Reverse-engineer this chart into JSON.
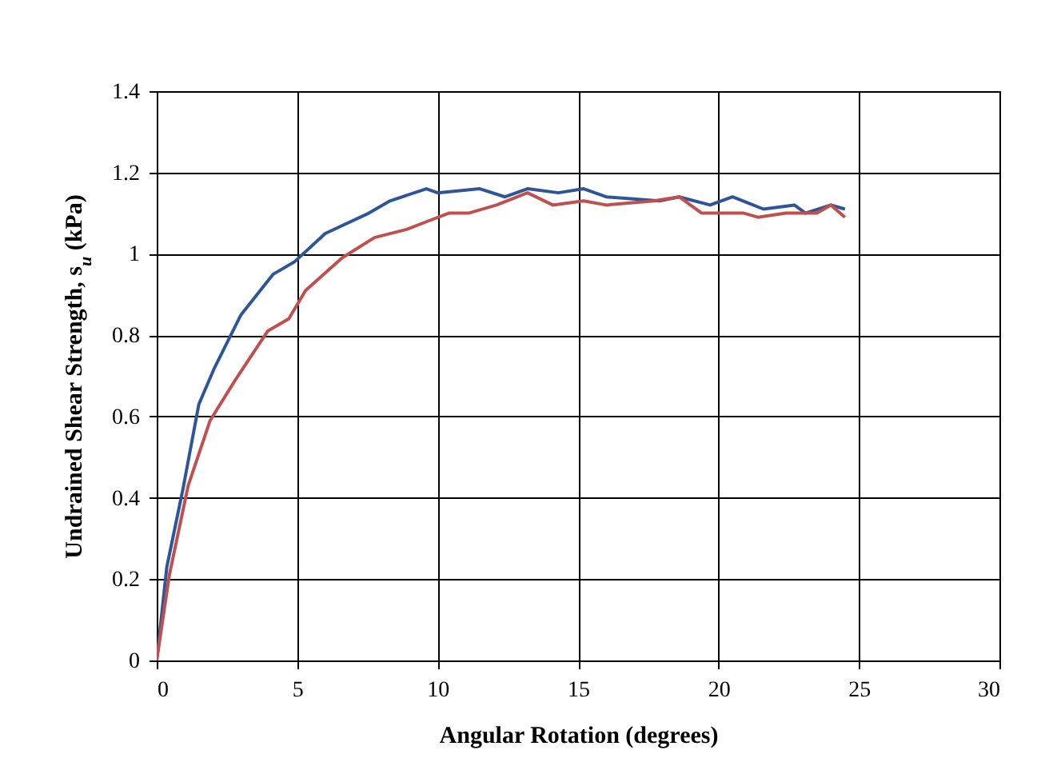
{
  "chart_data": {
    "type": "line",
    "xlabel": "Angular Rotation (degrees)",
    "ylabel": "Undrained Shear Strength, s$_{u}$ (kPa)",
    "xlim": [
      0,
      30
    ],
    "xticks": [
      0,
      5,
      10,
      15,
      20,
      25,
      30
    ],
    "ylim": [
      0,
      1.4
    ],
    "yticks": [
      0,
      0.2,
      0.4,
      0.6,
      0.8,
      1,
      1.2,
      1.4
    ],
    "grid": true,
    "marker": "none",
    "line_style": "solid",
    "series": [
      {
        "color": "#2e5597",
        "x": [
          0,
          0.36,
          0.93,
          1.5,
          2.06,
          3.0,
          4.15,
          4.9,
          6.0,
          7.55,
          8.3,
          9.6,
          10.0,
          11.5,
          12.4,
          13.2,
          14.3,
          15.2,
          16.0,
          17.9,
          18.6,
          19.7,
          20.5,
          21.6,
          22.7,
          23.1,
          24.0,
          24.5
        ],
        "values": [
          0,
          0.23,
          0.42,
          0.63,
          0.72,
          0.85,
          0.95,
          0.98,
          1.05,
          1.1,
          1.13,
          1.16,
          1.15,
          1.16,
          1.14,
          1.16,
          1.15,
          1.16,
          1.14,
          1.13,
          1.14,
          1.12,
          1.14,
          1.11,
          1.12,
          1.1,
          1.12,
          1.11
        ]
      },
      {
        "color": "#c0504d",
        "x": [
          0,
          0.45,
          1.12,
          1.9,
          2.8,
          3.95,
          4.7,
          5.3,
          6.6,
          7.75,
          8.9,
          9.64,
          10.4,
          11.1,
          12.1,
          13.2,
          14.1,
          15.2,
          16.0,
          17.7,
          18.6,
          19.4,
          20.9,
          21.4,
          22.4,
          23.5,
          24.0,
          24.5
        ],
        "values": [
          0,
          0.21,
          0.43,
          0.59,
          0.69,
          0.81,
          0.84,
          0.91,
          0.99,
          1.04,
          1.06,
          1.08,
          1.1,
          1.1,
          1.12,
          1.15,
          1.12,
          1.13,
          1.12,
          1.13,
          1.14,
          1.1,
          1.1,
          1.09,
          1.1,
          1.1,
          1.12,
          1.09
        ]
      }
    ]
  }
}
